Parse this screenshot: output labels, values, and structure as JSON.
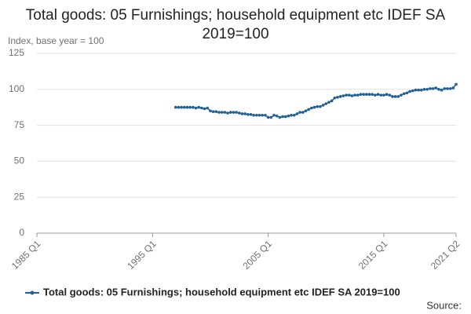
{
  "chart_data": {
    "type": "line",
    "title": "Total goods: 05 Furnishings; household equipment etc IDEF SA 2019=100",
    "y_label": "Index, base year = 100",
    "source": "Source:",
    "categories": [
      "1985 Q1",
      null,
      null,
      null,
      null,
      null,
      null,
      null,
      null,
      null,
      null,
      null,
      null,
      null,
      null,
      null,
      null,
      null,
      null,
      null,
      null,
      null,
      null,
      null,
      null,
      null,
      null,
      null,
      null,
      null,
      null,
      null,
      null,
      null,
      null,
      null,
      null,
      null,
      null,
      null,
      "1995 Q1",
      null,
      null,
      null,
      null,
      null,
      null,
      null,
      null,
      null,
      null,
      null,
      null,
      null,
      null,
      null,
      null,
      null,
      null,
      null,
      null,
      null,
      null,
      null,
      null,
      null,
      null,
      null,
      null,
      null,
      null,
      null,
      null,
      null,
      null,
      null,
      null,
      null,
      null,
      null,
      "2005 Q1",
      null,
      null,
      null,
      null,
      null,
      null,
      null,
      null,
      null,
      null,
      null,
      null,
      null,
      null,
      null,
      null,
      null,
      null,
      null,
      null,
      null,
      null,
      null,
      null,
      null,
      null,
      null,
      null,
      null,
      null,
      null,
      null,
      null,
      null,
      null,
      null,
      null,
      null,
      null,
      "2015 Q1",
      null,
      null,
      null,
      null,
      null,
      null,
      null,
      null,
      null,
      null,
      null,
      null,
      null,
      null,
      null,
      null,
      null,
      null,
      null,
      null,
      null,
      null,
      null,
      null,
      "2021 Q2"
    ],
    "series": [
      {
        "name": "Total goods: 05 Furnishings; household equipment etc IDEF SA 2019=100",
        "color": "#206095",
        "values": [
          null,
          null,
          null,
          null,
          null,
          null,
          null,
          null,
          null,
          null,
          null,
          null,
          null,
          null,
          null,
          null,
          null,
          null,
          null,
          null,
          null,
          null,
          null,
          null,
          null,
          null,
          null,
          null,
          null,
          null,
          null,
          null,
          null,
          null,
          null,
          null,
          null,
          null,
          null,
          null,
          null,
          null,
          null,
          null,
          null,
          null,
          null,
          null,
          87.5,
          87.5,
          87.5,
          87.5,
          87.5,
          87.5,
          87.5,
          87,
          87.5,
          87,
          86.5,
          87,
          85,
          84.5,
          84.5,
          84,
          84,
          84,
          83.5,
          84,
          84,
          84,
          83.5,
          83,
          83,
          82.5,
          82.5,
          82,
          82,
          82,
          82,
          82,
          80.5,
          80.5,
          82,
          81.5,
          80.5,
          81,
          81,
          81.5,
          82,
          82,
          83,
          84,
          84,
          85,
          86,
          87,
          87.5,
          88,
          88,
          89,
          90,
          91,
          92,
          94,
          94.5,
          95,
          95.5,
          96,
          96,
          95.5,
          96,
          96,
          96.5,
          96.5,
          96.5,
          96.5,
          96.5,
          96,
          96.5,
          96,
          96,
          96.5,
          96,
          95,
          95,
          95,
          96,
          97,
          97.5,
          98.5,
          99,
          99.5,
          99.5,
          99.5,
          100,
          100,
          100.5,
          100.5,
          101,
          100,
          99.5,
          100.5,
          100.5,
          100.5,
          101,
          103.5
        ]
      }
    ],
    "ylim": [
      0,
      125
    ],
    "yticks": [
      0,
      25,
      50,
      75,
      100,
      125
    ],
    "grid": true
  }
}
